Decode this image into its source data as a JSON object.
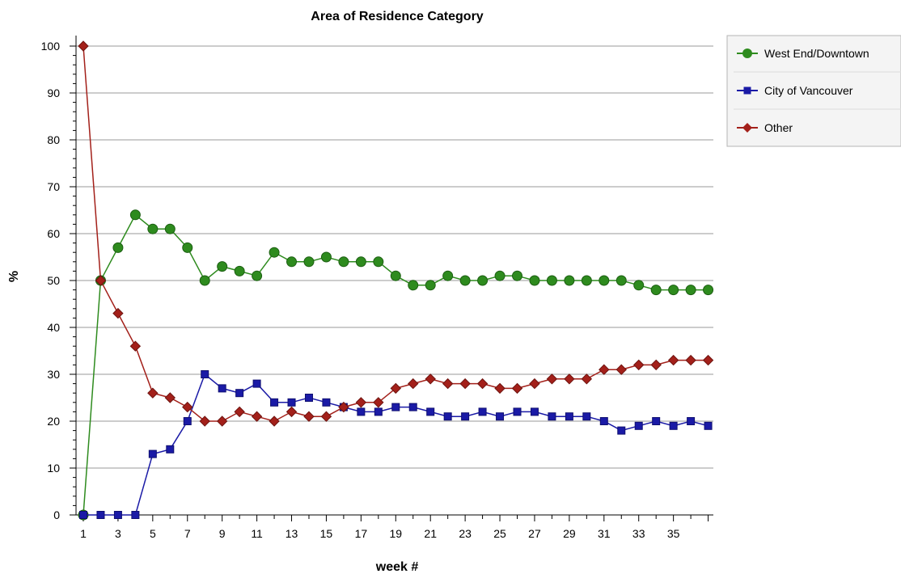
{
  "chart_data": {
    "type": "line",
    "title": "Area of Residence Category",
    "xlabel": "week #",
    "ylabel": "%",
    "x": [
      1,
      2,
      3,
      4,
      5,
      6,
      7,
      8,
      9,
      10,
      11,
      12,
      13,
      14,
      15,
      16,
      17,
      18,
      19,
      20,
      21,
      22,
      23,
      24,
      25,
      26,
      27,
      28,
      29,
      30,
      31,
      32,
      33,
      34,
      35,
      36,
      37
    ],
    "x_tick_labels": [
      "1",
      "3",
      "5",
      "7",
      "9",
      "11",
      "13",
      "15",
      "17",
      "19",
      "21",
      "23",
      "25",
      "27",
      "29",
      "31",
      "33",
      "35"
    ],
    "y_tick_labels": [
      "0",
      "10",
      "20",
      "30",
      "40",
      "50",
      "60",
      "70",
      "80",
      "90",
      "100"
    ],
    "ylim": [
      0,
      100
    ],
    "grid": true,
    "legend_position": "top-right",
    "series": [
      {
        "name": "West End/Downtown",
        "color": "#2e8b1e",
        "marker": "circle",
        "values": [
          0,
          50,
          57,
          64,
          61,
          61,
          57,
          50,
          53,
          52,
          51,
          56,
          54,
          54,
          55,
          54,
          54,
          54,
          51,
          49,
          49,
          51,
          50,
          50,
          51,
          51,
          50,
          50,
          50,
          50,
          50,
          50,
          49,
          48,
          48,
          48,
          48
        ]
      },
      {
        "name": "City of Vancouver",
        "color": "#1a1aa6",
        "marker": "square",
        "values": [
          0,
          0,
          0,
          0,
          13,
          14,
          20,
          30,
          27,
          26,
          28,
          24,
          24,
          25,
          24,
          23,
          22,
          22,
          23,
          23,
          22,
          21,
          21,
          22,
          21,
          22,
          22,
          21,
          21,
          21,
          20,
          18,
          19,
          20,
          19,
          20,
          19
        ]
      },
      {
        "name": "Other",
        "color": "#a3201a",
        "marker": "diamond",
        "values": [
          100,
          50,
          43,
          36,
          26,
          25,
          23,
          20,
          20,
          22,
          21,
          20,
          22,
          21,
          21,
          23,
          24,
          24,
          27,
          28,
          29,
          28,
          28,
          28,
          27,
          27,
          28,
          29,
          29,
          29,
          31,
          31,
          32,
          32,
          33,
          33,
          33
        ]
      }
    ]
  }
}
